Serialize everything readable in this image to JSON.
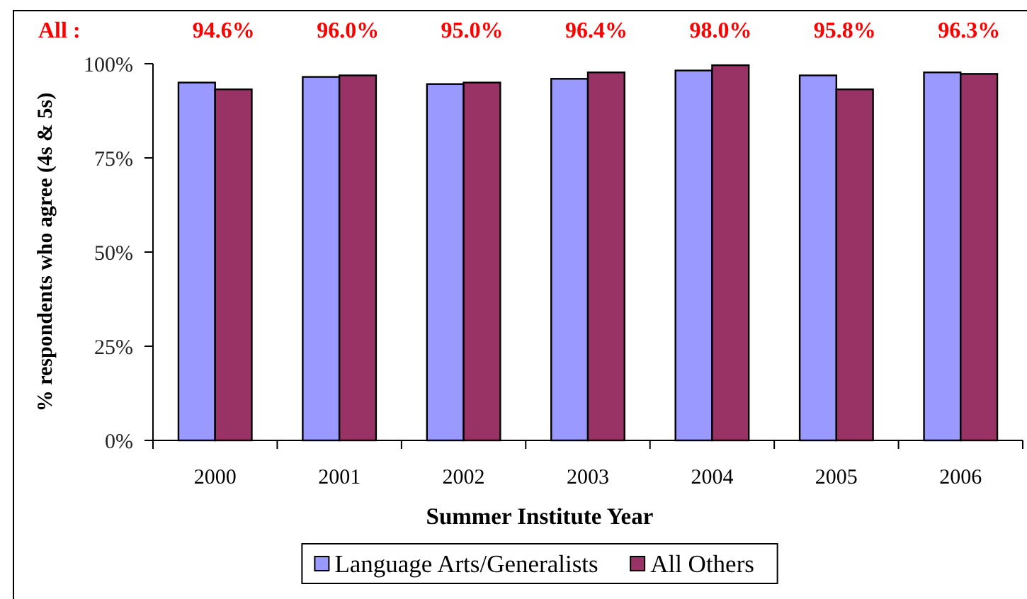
{
  "chart_data": {
    "type": "bar",
    "xlabel": "Summer Institute Year",
    "ylabel": "% respondents who agree (4s & 5s)",
    "categories": [
      "2000",
      "2001",
      "2002",
      "2003",
      "2004",
      "2005",
      "2006"
    ],
    "series": [
      {
        "name": "Language Arts/Generalists",
        "color": "#9999ff",
        "values": [
          95.0,
          96.5,
          94.6,
          96.0,
          98.2,
          96.9,
          97.7
        ]
      },
      {
        "name": "All Others",
        "color": "#993366",
        "values": [
          93.2,
          96.9,
          95.0,
          97.7,
          99.6,
          93.2,
          97.3
        ]
      }
    ],
    "ylim": [
      0,
      100
    ],
    "yticks": [
      {
        "value": 0,
        "label": "0%"
      },
      {
        "value": 25,
        "label": "25%"
      },
      {
        "value": 50,
        "label": "50%"
      },
      {
        "value": 75,
        "label": "75%"
      },
      {
        "value": 100,
        "label": "100%"
      }
    ],
    "grid": false,
    "legend": "bottom",
    "annotations": [
      "All :",
      "94.6%",
      "96.0%",
      "95.0%",
      "96.4%",
      "98.0%",
      "95.8%",
      "96.3%"
    ]
  }
}
